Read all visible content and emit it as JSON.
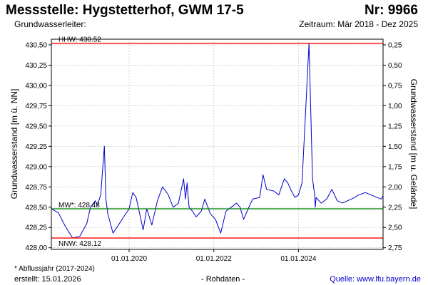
{
  "header": {
    "title": "Messstelle: Hygstetterhof, GWM 17-5",
    "number": "Nr: 9966",
    "aquifer": "Grundwasserleiter:",
    "period": "Zeitraum: Mär 2018 - Dez 2025"
  },
  "footer": {
    "note": "* Abflussjahr (2017-2024)",
    "created": "erstellt:  15.01.2026",
    "raw": "- Rohdaten -",
    "source": "Quelle:  www.lfu.bayern.de"
  },
  "colors": {
    "series": "#0000cc",
    "hhw": "#ff0000",
    "nnw": "#ff0000",
    "mw": "#008000",
    "grid": "#bbbbbb"
  },
  "chart_data": {
    "type": "line",
    "ylabel": "Grundwasserstand [m ü. NN]",
    "ylabel_right": "Grundwasserstand [m u. Gelände]",
    "ylim": [
      427.98,
      430.57
    ],
    "xlim": [
      "2018-03-01",
      "2025-12-31"
    ],
    "yticks": [
      "430,50",
      "430,25",
      "430,00",
      "429,75",
      "429,50",
      "429,25",
      "429,00",
      "428,75",
      "428,50",
      "428,25",
      "428,00"
    ],
    "ytick_values": [
      430.5,
      430.25,
      430.0,
      429.75,
      429.5,
      429.25,
      429.0,
      428.75,
      428.5,
      428.25,
      428.0
    ],
    "yticks_right": [
      "0,25",
      "0,50",
      "0,75",
      "1,00",
      "1,25",
      "1,50",
      "1,75",
      "2,00",
      "2,25",
      "2,50",
      "2,75"
    ],
    "ytick_right_values": [
      430.5,
      430.25,
      430.0,
      429.75,
      429.5,
      429.25,
      429.0,
      428.75,
      428.5,
      428.25,
      428.0
    ],
    "xticks": [
      "01.01.2020",
      "01.01.2022",
      "01.01.2024"
    ],
    "xtick_values": [
      "2020-01-01",
      "2022-01-01",
      "2024-01-01"
    ],
    "grid": true,
    "reference_lines": [
      {
        "key": "hhw",
        "label": "HHW: 430.52",
        "value": 430.52
      },
      {
        "key": "mw",
        "label": "MW*: 428.48",
        "value": 428.48
      },
      {
        "key": "nnw",
        "label": "NNW: 428.12",
        "value": 428.12
      }
    ],
    "series": [
      {
        "x": [
          "2018-03-01",
          "2018-05-01",
          "2018-07-01",
          "2018-09-01",
          "2018-11-01",
          "2019-01-01",
          "2019-02-01",
          "2019-03-15",
          "2019-04-01",
          "2019-05-01",
          "2019-06-01",
          "2019-06-15",
          "2019-07-01",
          "2019-08-15",
          "2019-10-01",
          "2019-11-15",
          "2020-01-01",
          "2020-02-01",
          "2020-03-01",
          "2020-04-01",
          "2020-05-01",
          "2020-06-01",
          "2020-07-15",
          "2020-09-01",
          "2020-10-15",
          "2020-12-01",
          "2021-01-15",
          "2021-03-01",
          "2021-04-15",
          "2021-05-01",
          "2021-05-15",
          "2021-06-01",
          "2021-07-01",
          "2021-08-01",
          "2021-09-15",
          "2021-10-15",
          "2021-12-01",
          "2022-01-15",
          "2022-03-01",
          "2022-04-15",
          "2022-06-01",
          "2022-07-15",
          "2022-08-15",
          "2022-09-15",
          "2022-10-15",
          "2022-12-01",
          "2023-02-01",
          "2023-03-01",
          "2023-04-01",
          "2023-06-01",
          "2023-07-15",
          "2023-09-01",
          "2023-10-01",
          "2023-11-01",
          "2023-12-01",
          "2024-01-01",
          "2024-02-01",
          "2024-04-01",
          "2024-05-01",
          "2024-05-20",
          "2024-05-25",
          "2024-06-01",
          "2024-07-15",
          "2024-09-01",
          "2024-10-15",
          "2024-12-01",
          "2025-01-15",
          "2025-03-01",
          "2025-04-01",
          "2025-05-01",
          "2025-06-01",
          "2025-08-01",
          "2025-12-15",
          "2025-12-31"
        ],
        "values": [
          428.48,
          428.43,
          428.26,
          428.12,
          428.14,
          428.3,
          428.5,
          428.58,
          428.52,
          428.65,
          429.25,
          428.6,
          428.42,
          428.18,
          428.28,
          428.38,
          428.48,
          428.68,
          428.62,
          428.42,
          428.22,
          428.48,
          428.28,
          428.58,
          428.75,
          428.66,
          428.5,
          428.55,
          428.85,
          428.6,
          428.8,
          428.5,
          428.45,
          428.38,
          428.45,
          428.6,
          428.42,
          428.35,
          428.18,
          428.45,
          428.5,
          428.55,
          428.5,
          428.35,
          428.45,
          428.6,
          428.62,
          428.9,
          428.72,
          428.7,
          428.65,
          428.85,
          428.8,
          428.7,
          428.62,
          428.65,
          428.8,
          430.52,
          428.85,
          428.65,
          428.5,
          428.62,
          428.55,
          428.6,
          428.72,
          428.58,
          428.55,
          428.58,
          428.6,
          428.62,
          428.65,
          428.68,
          428.6,
          428.64
        ]
      }
    ]
  }
}
